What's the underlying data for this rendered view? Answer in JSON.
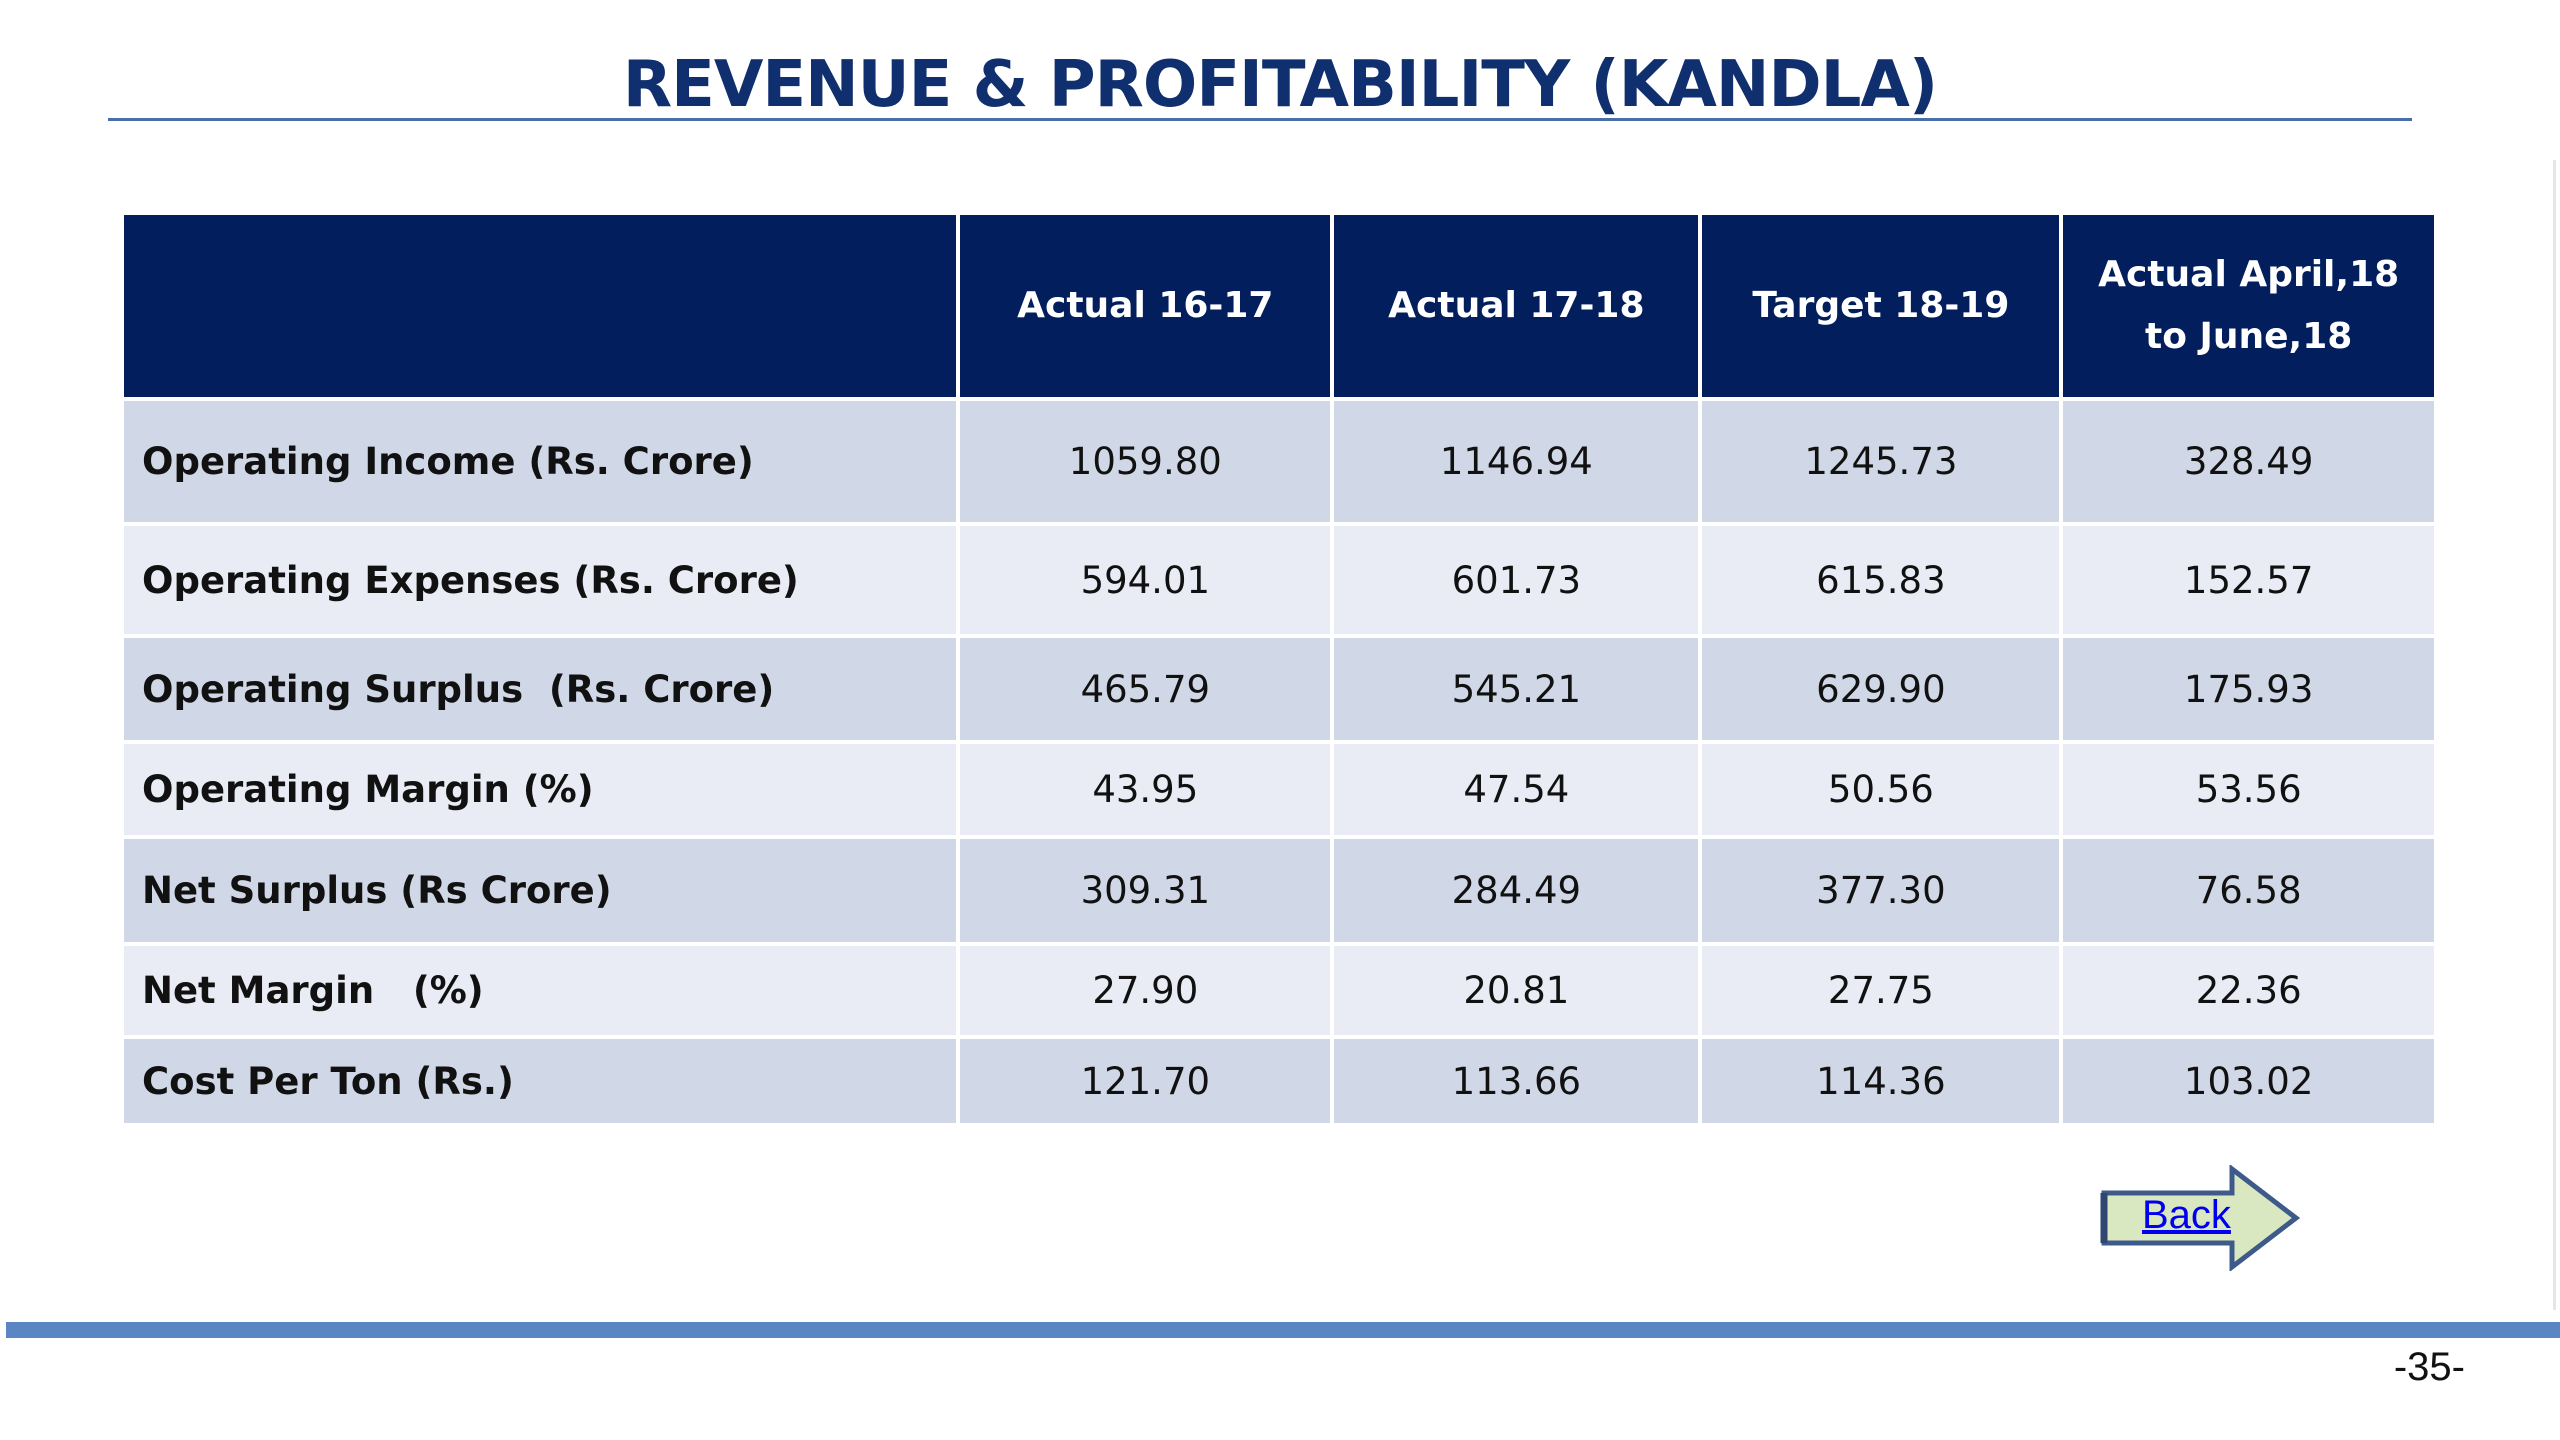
{
  "slide": {
    "title": "REVENUE & PROFITABILITY (KANDLA)",
    "page_number": "-35-"
  },
  "table": {
    "headers": [
      "",
      "Actual 16-17",
      "Actual 17-18",
      "Target 18-19",
      "Actual April,18 to June,18"
    ],
    "rows": [
      {
        "label": "Operating Income (Rs. Crore)",
        "values": [
          "1059.80",
          "1146.94",
          "1245.73",
          "328.49"
        ]
      },
      {
        "label": "Operating Expenses (Rs. Crore)",
        "values": [
          "594.01",
          "601.73",
          "615.83",
          "152.57"
        ]
      },
      {
        "label": "Operating Surplus  (Rs. Crore)",
        "values": [
          "465.79",
          "545.21",
          "629.90",
          "175.93"
        ]
      },
      {
        "label": "Operating Margin (%)",
        "values": [
          "43.95",
          "47.54",
          "50.56",
          "53.56"
        ]
      },
      {
        "label": "Net Surplus (Rs Crore)",
        "values": [
          "309.31",
          "284.49",
          "377.30",
          "76.58"
        ]
      },
      {
        "label": "Net Margin   (%)",
        "values": [
          "27.90",
          "20.81",
          "27.75",
          "22.36"
        ]
      },
      {
        "label": "Cost Per Ton (Rs.)",
        "values": [
          "121.70",
          "113.66",
          "114.36",
          "103.02"
        ]
      }
    ]
  },
  "navigation": {
    "back_label": "Back"
  },
  "colors": {
    "title": "#0f2f6e",
    "header_bg": "#021e5c",
    "row_odd": "#d0d7e6",
    "row_even": "#e9ecf5",
    "bottom_bar": "#5b86c4",
    "arrow_fill": "#d9e8c0",
    "arrow_stroke": "#3d5a8a"
  }
}
